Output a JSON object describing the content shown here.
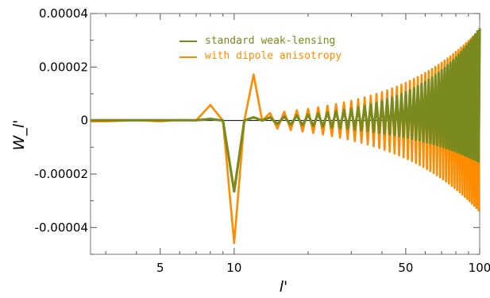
{
  "chart_data": {
    "type": "line",
    "xscale": "log",
    "xlim": [
      2.6,
      100
    ],
    "ylim": [
      -5e-05,
      4e-05
    ],
    "xlabel": "l'",
    "ylabel": "W_l'",
    "grid": false,
    "legend_position": "top-center",
    "x_ticks": [
      {
        "value": 5,
        "label": "5"
      },
      {
        "value": 10,
        "label": "10"
      },
      {
        "value": 50,
        "label": "50"
      },
      {
        "value": 100,
        "label": "100"
      }
    ],
    "y_ticks": [
      {
        "value": 4e-05,
        "label": "0.00004"
      },
      {
        "value": 2e-05,
        "label": "0.00002"
      },
      {
        "value": 0,
        "label": "0"
      },
      {
        "value": -2e-05,
        "label": "-0.00002"
      },
      {
        "value": -4e-05,
        "label": "-0.00004"
      }
    ],
    "series": [
      {
        "name": "with dipole anisotropy",
        "color": "#ff8c00",
        "values": [
          [
            2.6,
            -3e-07
          ],
          [
            3,
            -3e-07
          ],
          [
            4,
            1e-07
          ],
          [
            5,
            -3e-07
          ],
          [
            6,
            2e-07
          ],
          [
            7,
            0
          ],
          [
            8,
            5.8e-06
          ],
          [
            9,
            0
          ],
          [
            10,
            -4.58e-05
          ],
          [
            11,
            0
          ],
          [
            12,
            1.72e-05
          ],
          [
            13,
            0
          ],
          [
            14,
            2.8e-06
          ]
        ],
        "envelope": {
          "x_start": 14,
          "x_end": 100,
          "amp_start": 2.8e-06,
          "amp_end": 3.4e-05
        }
      },
      {
        "name": "standard weak-lensing",
        "color": "#7b8a1e",
        "values": [
          [
            2.6,
            1e-07
          ],
          [
            3,
            1e-07
          ],
          [
            4,
            1e-07
          ],
          [
            5,
            1e-07
          ],
          [
            6,
            1e-07
          ],
          [
            7,
            1e-07
          ],
          [
            8,
            6e-07
          ],
          [
            9,
            0
          ],
          [
            10,
            -2.65e-05
          ],
          [
            11,
            0
          ],
          [
            12,
            1.2e-06
          ],
          [
            13,
            0
          ],
          [
            14,
            1.2e-06
          ]
        ],
        "envelope": {
          "x_start": 14,
          "x_end": 100,
          "amp_start": 1.2e-06,
          "amp_end": 3.45e-05,
          "neg_amp_end": 1.55e-05
        }
      }
    ]
  }
}
